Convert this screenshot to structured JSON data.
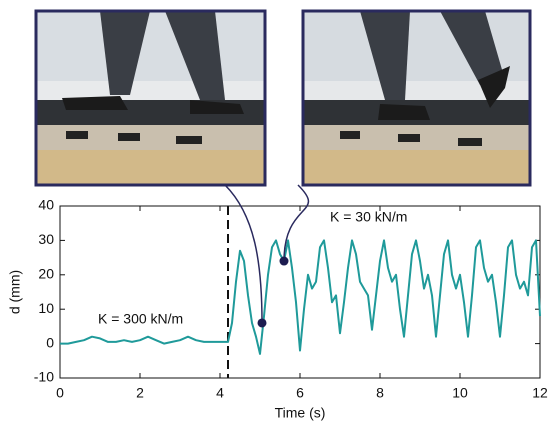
{
  "chart_data": {
    "type": "line",
    "xlabel": "Time (s)",
    "ylabel": "d (mm)",
    "x": [
      0,
      0.2,
      0.4,
      0.6,
      0.8,
      1.0,
      1.2,
      1.4,
      1.6,
      1.8,
      2.0,
      2.2,
      2.4,
      2.6,
      2.8,
      3.0,
      3.2,
      3.4,
      3.6,
      3.8,
      4.0,
      4.1,
      4.2,
      4.3,
      4.4,
      4.5,
      4.6,
      4.7,
      4.8,
      4.9,
      5.0,
      5.1,
      5.2,
      5.3,
      5.4,
      5.5,
      5.6,
      5.7,
      5.8,
      5.9,
      6.0,
      6.1,
      6.2,
      6.3,
      6.4,
      6.5,
      6.6,
      6.7,
      6.8,
      6.9,
      7.0,
      7.1,
      7.2,
      7.3,
      7.4,
      7.5,
      7.6,
      7.7,
      7.8,
      7.9,
      8.0,
      8.1,
      8.2,
      8.3,
      8.4,
      8.5,
      8.6,
      8.7,
      8.8,
      8.9,
      9.0,
      9.1,
      9.2,
      9.3,
      9.4,
      9.5,
      9.6,
      9.7,
      9.8,
      9.9,
      10.0,
      10.1,
      10.2,
      10.3,
      10.4,
      10.5,
      10.6,
      10.7,
      10.8,
      10.9,
      11.0,
      11.1,
      11.2,
      11.3,
      11.4,
      11.5,
      11.6,
      11.7,
      11.8,
      11.9,
      12.0
    ],
    "series": [
      {
        "color": "#1f9a9a",
        "values": [
          0,
          0,
          0.5,
          1,
          2,
          1.5,
          0.5,
          0.5,
          1,
          0.5,
          1,
          2,
          1,
          0,
          0.5,
          1,
          2,
          1,
          0.5,
          0.5,
          0.5,
          0.5,
          0.5,
          6,
          18,
          27,
          24,
          14,
          6,
          2,
          -3,
          8,
          20,
          28,
          30,
          26,
          24,
          30,
          22,
          12,
          -2,
          10,
          20,
          16,
          18,
          28,
          30,
          22,
          12,
          14,
          3,
          12,
          22,
          30,
          26,
          18,
          16,
          14,
          4,
          14,
          24,
          30,
          22,
          18,
          20,
          10,
          2,
          14,
          26,
          30,
          24,
          16,
          20,
          14,
          2,
          14,
          26,
          30,
          20,
          16,
          20,
          12,
          2,
          14,
          28,
          30,
          22,
          18,
          20,
          12,
          2,
          14,
          28,
          30,
          20,
          16,
          18,
          14,
          28,
          30,
          8
        ]
      }
    ],
    "xlim": [
      0,
      12
    ],
    "xticks": [
      0,
      2,
      4,
      6,
      8,
      10,
      12
    ],
    "ylim": [
      -10,
      40
    ],
    "yticks": [
      -10,
      0,
      10,
      20,
      30,
      40
    ],
    "divider_x": 4.2,
    "markers": [
      {
        "x": 5.05,
        "y": 6
      },
      {
        "x": 5.6,
        "y": 24
      }
    ],
    "annotations": [
      "K = 300 kN/m",
      "K = 30 kN/m"
    ]
  }
}
